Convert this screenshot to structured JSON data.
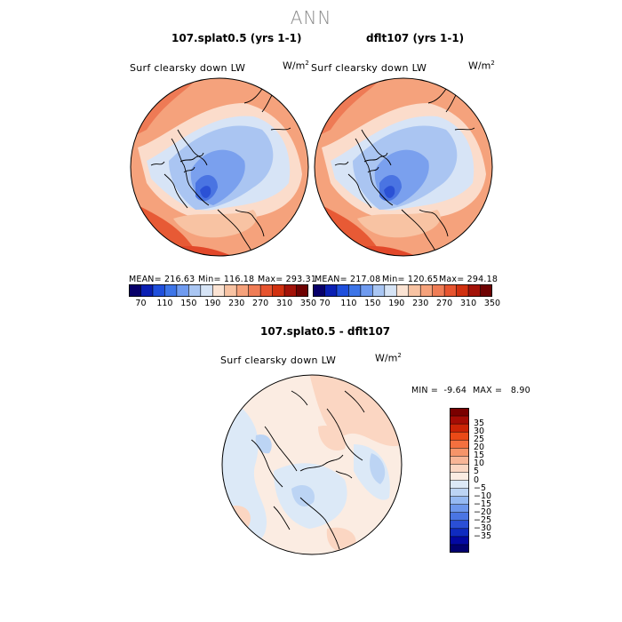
{
  "title": "ANN",
  "panels": {
    "left": {
      "title": "107.splat0.5 (yrs 1-1)",
      "variable": "Surf clearsky down LW",
      "units_base": "W/m",
      "units_exp": "2",
      "mean_label": "MEAN= 216.63",
      "min_label": "Min= 116.18",
      "max_label": "Max= 293.31"
    },
    "right": {
      "title": "dflt107 (yrs 1-1)",
      "variable": "Surf clearsky down LW",
      "units_base": "W/m",
      "units_exp": "2",
      "mean_label": "MEAN= 217.08",
      "min_label": "Min= 120.65",
      "max_label": "Max= 294.18"
    },
    "diff": {
      "title": "107.splat0.5 - dflt107",
      "variable": "Surf clearsky down LW",
      "units_base": "W/m",
      "units_exp": "2",
      "min_label": "MIN =",
      "min_value": "-9.64",
      "max_label": "MAX =",
      "max_value": "8.90"
    }
  },
  "colorbar_h": {
    "colors": [
      "#08006a",
      "#0a1fb3",
      "#1f4fdc",
      "#3d75e8",
      "#6f9bf0",
      "#a9c6f3",
      "#d6e4f6",
      "#fbe3d3",
      "#f8c3a3",
      "#f6a27b",
      "#f07d56",
      "#e7542f",
      "#d1300f",
      "#a31208",
      "#6e0202"
    ],
    "tick_labels": [
      "70",
      "110",
      "150",
      "190",
      "230",
      "270",
      "310",
      "350"
    ]
  },
  "colorbar_v": {
    "colors": [
      "#7a0000",
      "#a50c05",
      "#cc2406",
      "#ea4a17",
      "#f4703f",
      "#f69469",
      "#f8b596",
      "#fbd6c2",
      "#fbece2",
      "#dce9f7",
      "#bcd4f4",
      "#95b9f2",
      "#6d97ec",
      "#4a75e3",
      "#2a4fd6",
      "#0f2bc0",
      "#0308a2",
      "#010070"
    ],
    "tick_labels": [
      "35",
      "30",
      "25",
      "20",
      "15",
      "10",
      "5",
      "0",
      "−5",
      "−10",
      "−15",
      "−20",
      "−25",
      "−30",
      "−35"
    ]
  }
}
